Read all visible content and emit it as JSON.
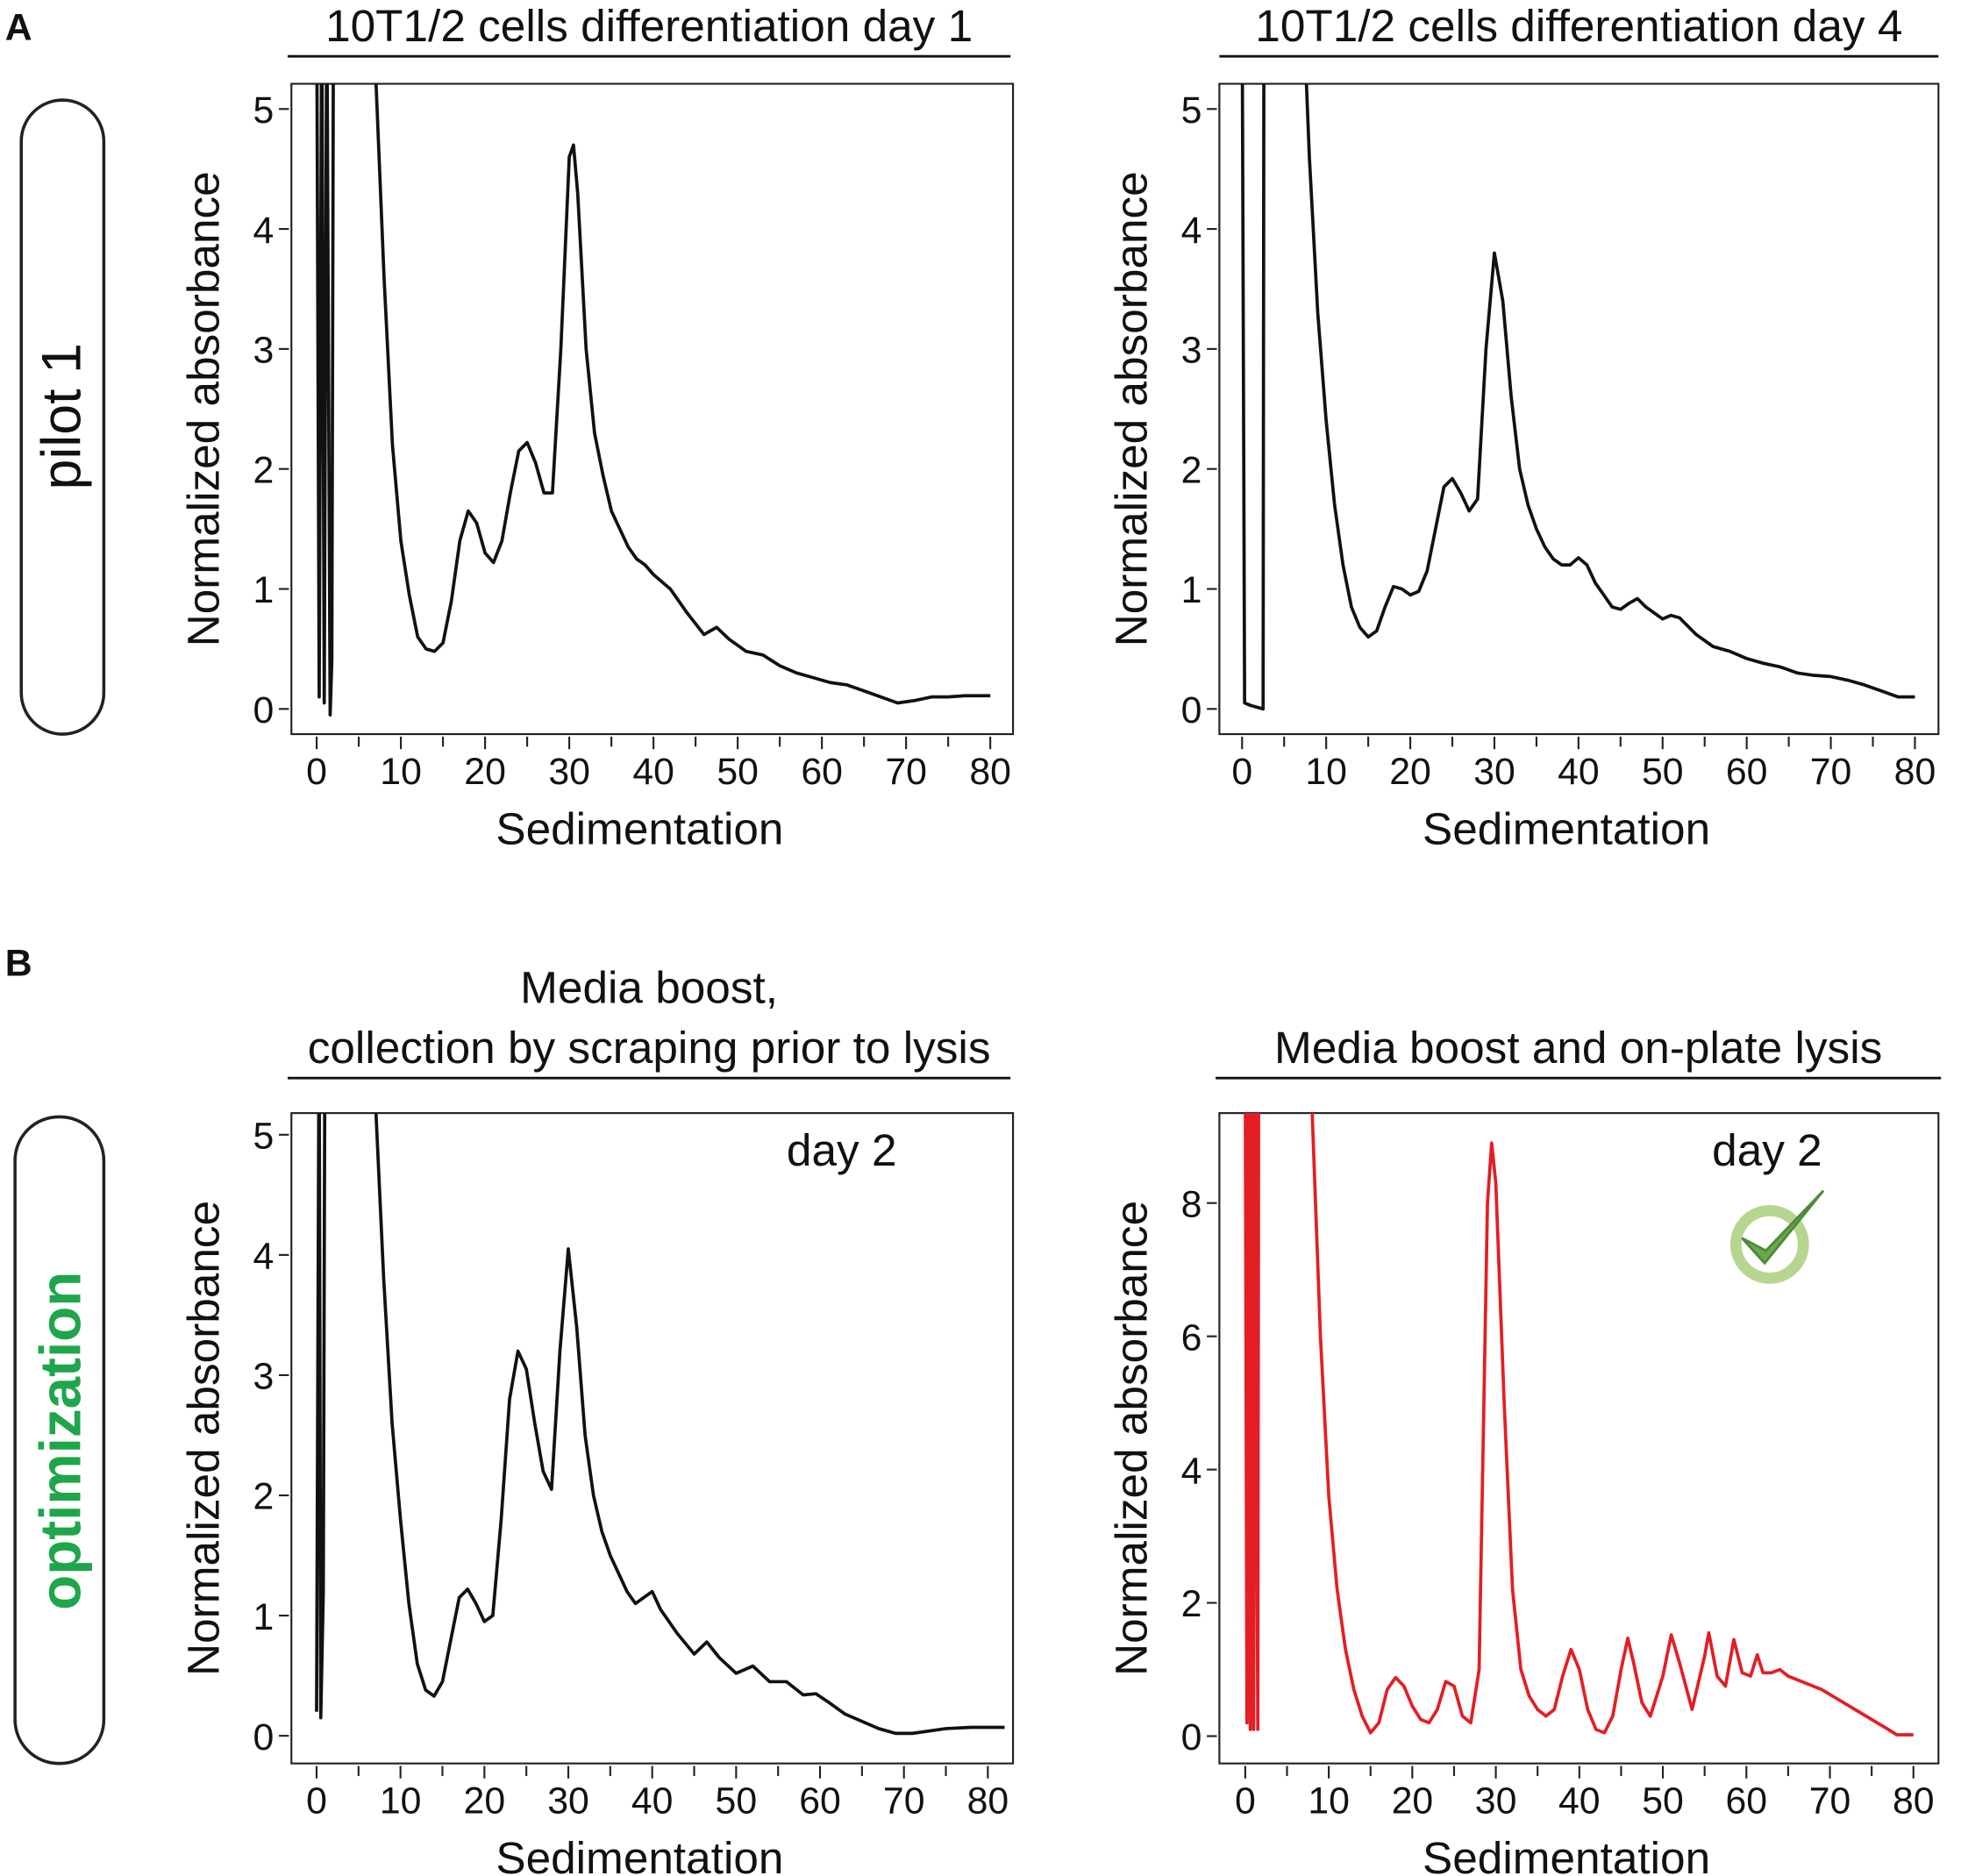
{
  "panel_labels": [
    "A",
    "B"
  ],
  "row_labels": [
    "pilot 1",
    "optimization"
  ],
  "chart_data": [
    {
      "type": "line",
      "title": "10T1/2 cells differentiation day 1",
      "xlabel": "Sedimentation",
      "ylabel": "Normalized absorbance",
      "color": "#111111",
      "xlim": [
        -3,
        82.7
      ],
      "ylim": [
        -0.21,
        5.21
      ],
      "xticks": [
        0,
        10,
        20,
        30,
        40,
        50,
        60,
        70,
        80
      ],
      "xminor_ticks": [
        5,
        15,
        25,
        35,
        45,
        55,
        65,
        75
      ],
      "yticks": [
        0,
        1,
        2,
        3,
        4,
        5
      ],
      "x": [
        0,
        0.3,
        0.6,
        0.9,
        1.2,
        1.6,
        1.8,
        2,
        7,
        8,
        9,
        10,
        11,
        12,
        13,
        14,
        15,
        16,
        17,
        18,
        19,
        20,
        21,
        22,
        23,
        24,
        25,
        26,
        27,
        28,
        29,
        30,
        30.5,
        31,
        32,
        33,
        34,
        35,
        36,
        37,
        38,
        39,
        40,
        42,
        44,
        46,
        47.5,
        49,
        51,
        53,
        55,
        57,
        59,
        61,
        63,
        65,
        67,
        69,
        71,
        73,
        75,
        77,
        80
      ],
      "values": [
        6,
        0.1,
        6,
        0.05,
        6,
        -0.05,
        0.4,
        6,
        5.3,
        3.6,
        2.2,
        1.4,
        0.95,
        0.6,
        0.5,
        0.48,
        0.55,
        0.9,
        1.4,
        1.65,
        1.55,
        1.3,
        1.22,
        1.4,
        1.8,
        2.15,
        2.22,
        2.05,
        1.8,
        1.8,
        3.0,
        4.6,
        4.7,
        4.3,
        3.0,
        2.3,
        1.95,
        1.65,
        1.5,
        1.35,
        1.25,
        1.2,
        1.12,
        1.0,
        0.8,
        0.62,
        0.68,
        0.58,
        0.48,
        0.45,
        0.36,
        0.3,
        0.26,
        0.22,
        0.2,
        0.15,
        0.1,
        0.05,
        0.07,
        0.1,
        0.1,
        0.11,
        0.11
      ]
    },
    {
      "type": "line",
      "title": "10T1/2 cells differentiation day 4",
      "xlabel": "Sedimentation",
      "ylabel": "Normalized absorbance",
      "color": "#111111",
      "xlim": [
        -2.7,
        82.8
      ],
      "ylim": [
        -0.21,
        5.21
      ],
      "xticks": [
        0,
        10,
        20,
        30,
        40,
        50,
        60,
        70,
        80
      ],
      "xminor_ticks": [
        5,
        15,
        25,
        35,
        45,
        55,
        65,
        75
      ],
      "yticks": [
        0,
        1,
        2,
        3,
        4,
        5
      ],
      "x": [
        0,
        0.3,
        1,
        2.5,
        2.6,
        7.6,
        8,
        9,
        10,
        11,
        12,
        13,
        14,
        15,
        16,
        17,
        18,
        19,
        20,
        21,
        22,
        23,
        24,
        25,
        26,
        27,
        28,
        29,
        30,
        31,
        32,
        33,
        34,
        35,
        36,
        37,
        38,
        39,
        40,
        41,
        42,
        43,
        44,
        45,
        46,
        47,
        48,
        50,
        51,
        52,
        54,
        56,
        58,
        60,
        62,
        64,
        66,
        68,
        70,
        72,
        74,
        76,
        78,
        80
      ],
      "values": [
        6,
        0.05,
        0.03,
        0,
        6,
        5.3,
        4.6,
        3.3,
        2.4,
        1.7,
        1.2,
        0.85,
        0.68,
        0.6,
        0.65,
        0.85,
        1.02,
        1.0,
        0.95,
        0.98,
        1.15,
        1.5,
        1.85,
        1.92,
        1.8,
        1.65,
        1.75,
        3.0,
        3.8,
        3.4,
        2.6,
        2.0,
        1.7,
        1.5,
        1.35,
        1.25,
        1.2,
        1.2,
        1.26,
        1.2,
        1.05,
        0.95,
        0.85,
        0.83,
        0.88,
        0.92,
        0.85,
        0.75,
        0.78,
        0.76,
        0.62,
        0.52,
        0.48,
        0.42,
        0.38,
        0.35,
        0.3,
        0.28,
        0.27,
        0.24,
        0.2,
        0.15,
        0.1,
        0.1
      ]
    },
    {
      "type": "line",
      "title": [
        "Media boost,",
        "collection by scraping prior to lysis"
      ],
      "annotation": "day 2",
      "xlabel": "Sedimentation",
      "ylabel": "Normalized absorbance",
      "color": "#111111",
      "xlim": [
        -3,
        83
      ],
      "ylim": [
        -0.23,
        5.18
      ],
      "xticks": [
        0,
        10,
        20,
        30,
        40,
        50,
        60,
        70,
        80
      ],
      "xminor_ticks": [
        5,
        15,
        25,
        35,
        45,
        55,
        65,
        75
      ],
      "yticks": [
        0,
        1,
        2,
        3,
        4,
        5
      ],
      "x": [
        0,
        0.3,
        0.5,
        0.8,
        1,
        7,
        8,
        9,
        10,
        11,
        12,
        13,
        14,
        15,
        16,
        17,
        18,
        19,
        20,
        21,
        22,
        23,
        24,
        25,
        26,
        27,
        28,
        29,
        30,
        31,
        32,
        33,
        34,
        35,
        36,
        37,
        38,
        39,
        40,
        41,
        43,
        45,
        46.5,
        48,
        50,
        52,
        54,
        56,
        58,
        59.5,
        61,
        63,
        65,
        67,
        69,
        71,
        73,
        75,
        78,
        82
      ],
      "values": [
        0.2,
        6,
        0.15,
        1.2,
        6,
        5.3,
        3.8,
        2.6,
        1.8,
        1.1,
        0.6,
        0.38,
        0.33,
        0.45,
        0.8,
        1.15,
        1.22,
        1.1,
        0.95,
        1.0,
        1.8,
        2.8,
        3.2,
        3.05,
        2.6,
        2.2,
        2.05,
        3.2,
        4.05,
        3.4,
        2.5,
        2.0,
        1.7,
        1.5,
        1.35,
        1.2,
        1.1,
        1.15,
        1.2,
        1.05,
        0.85,
        0.68,
        0.78,
        0.65,
        0.52,
        0.58,
        0.45,
        0.45,
        0.34,
        0.35,
        0.28,
        0.18,
        0.12,
        0.06,
        0.02,
        0.02,
        0.04,
        0.06,
        0.07,
        0.07
      ]
    },
    {
      "type": "line",
      "title": "Media boost and on-plate lysis",
      "annotation": "day 2",
      "xlabel": "Sedimentation",
      "ylabel": "Normalized absorbance",
      "color": "#e31e24",
      "xlim": [
        -3.1,
        83
      ],
      "ylim": [
        -0.41,
        9.35
      ],
      "xticks": [
        0,
        10,
        20,
        30,
        40,
        50,
        60,
        70,
        80
      ],
      "xminor_ticks": [
        5,
        15,
        25,
        35,
        45,
        55,
        65,
        75
      ],
      "yticks": [
        0,
        2,
        4,
        6,
        8
      ],
      "x": [
        0,
        0.2,
        0.4,
        0.6,
        0.8,
        1,
        1.2,
        1.5,
        1.6,
        8,
        9,
        10,
        11,
        12,
        13,
        14,
        15,
        16,
        17,
        18,
        19,
        20,
        21,
        22,
        23,
        24,
        25,
        26,
        27,
        28,
        29,
        29.5,
        30,
        31,
        32,
        33,
        34,
        35,
        36,
        37,
        38,
        39,
        40,
        41,
        42,
        43,
        44,
        45,
        45.8,
        46.5,
        47.5,
        48.5,
        50,
        51,
        52,
        53.5,
        55,
        55.5,
        56.5,
        57.5,
        58.5,
        59.5,
        60.5,
        61.3,
        62,
        63,
        64,
        65,
        67,
        69,
        71,
        73,
        75,
        77,
        78,
        80
      ],
      "values": [
        10,
        0.2,
        10,
        0.1,
        10,
        0.1,
        10,
        0.1,
        10,
        9.4,
        6.0,
        3.6,
        2.2,
        1.3,
        0.7,
        0.3,
        0.05,
        0.2,
        0.7,
        0.88,
        0.75,
        0.45,
        0.25,
        0.2,
        0.4,
        0.82,
        0.75,
        0.3,
        0.2,
        1.0,
        8.0,
        8.9,
        8.3,
        5.0,
        2.2,
        1.0,
        0.6,
        0.4,
        0.3,
        0.4,
        0.9,
        1.3,
        1.0,
        0.4,
        0.1,
        0.05,
        0.3,
        1.0,
        1.47,
        1.1,
        0.5,
        0.3,
        0.9,
        1.52,
        1.1,
        0.4,
        1.2,
        1.55,
        0.9,
        0.75,
        1.45,
        0.95,
        0.9,
        1.22,
        0.95,
        0.95,
        1.0,
        0.9,
        0.8,
        0.7,
        0.55,
        0.4,
        0.25,
        0.1,
        0.02,
        0.02
      ]
    }
  ]
}
